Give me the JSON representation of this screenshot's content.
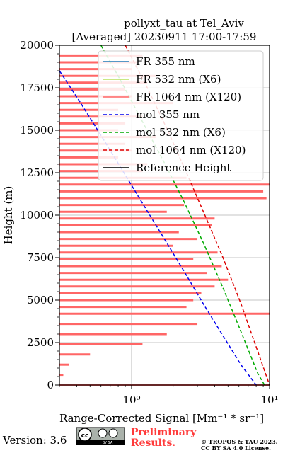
{
  "chart_data": {
    "type": "line",
    "title": "pollyxt_tau at Tel_Aviv",
    "subtitle": "[Averaged] 20230911 17:00-17:59",
    "xlabel": "Range-Corrected Signal [Mm⁻¹ * sr⁻¹]",
    "ylabel": "Height (m)",
    "xscale": "log",
    "xlim": [
      0.3,
      10
    ],
    "ylim": [
      0,
      20000
    ],
    "x_ticks": [
      {
        "value": 1,
        "label": "10⁰"
      },
      {
        "value": 10,
        "label": "10¹"
      }
    ],
    "y_ticks": [
      {
        "value": 0,
        "label": "0"
      },
      {
        "value": 2500,
        "label": "2500"
      },
      {
        "value": 5000,
        "label": "5000"
      },
      {
        "value": 7500,
        "label": "7500"
      },
      {
        "value": 10000,
        "label": "10000"
      },
      {
        "value": 12500,
        "label": "12500"
      },
      {
        "value": 15000,
        "label": "15000"
      },
      {
        "value": 17500,
        "label": "17500"
      },
      {
        "value": 20000,
        "label": "20000"
      }
    ],
    "grid": true,
    "legend_position": "top-right",
    "legend": [
      {
        "label": "FR 355 nm",
        "color": "#1f77b4",
        "style": "solid"
      },
      {
        "label": "FR 532 nm (X6)",
        "color": "#b8e05a",
        "style": "solid"
      },
      {
        "label": "FR 1064 nm (X120)",
        "color": "#ff6666",
        "style": "solid"
      },
      {
        "label": "mol 355 nm",
        "color": "#0000ee",
        "style": "dashed"
      },
      {
        "label": "mol 532 nm (X6)",
        "color": "#00aa00",
        "style": "dashed"
      },
      {
        "label": "mol 1064 nm (X120)",
        "color": "#dd0000",
        "style": "dashed"
      },
      {
        "label": "Reference Height",
        "color": "#000000",
        "style": "solid"
      }
    ],
    "series": [
      {
        "name": "mol 355 nm",
        "color": "#0000ee",
        "style": "dashed",
        "x": [
          0.3,
          0.42,
          0.6,
          0.85,
          1.2,
          1.7,
          2.4,
          3.3,
          4.6,
          6.2,
          8.0
        ],
        "y": [
          18500,
          16700,
          14700,
          12700,
          10700,
          8700,
          6700,
          4800,
          2900,
          1200,
          0
        ]
      },
      {
        "name": "mol 532 nm (X6)",
        "color": "#00aa00",
        "style": "dashed",
        "x": [
          0.6,
          0.85,
          1.2,
          1.7,
          2.4,
          3.3,
          4.5,
          6.1,
          8.2,
          9.2
        ],
        "y": [
          20000,
          17800,
          15500,
          13200,
          10800,
          8400,
          5900,
          3300,
          700,
          0
        ]
      },
      {
        "name": "mol 1064 nm (X120)",
        "color": "#dd0000",
        "style": "dashed",
        "x": [
          0.9,
          1.3,
          1.8,
          2.5,
          3.4,
          4.6,
          6.2,
          8.2,
          10.0
        ],
        "y": [
          20000,
          17500,
          15100,
          12500,
          10000,
          7500,
          4800,
          2000,
          0
        ]
      }
    ],
    "fr_1064_profile": {
      "name": "FR 1064 nm (X120)",
      "color": "#ff6666",
      "height": [
        0,
        600,
        1200,
        1800,
        2400,
        3000,
        3600,
        4200,
        4600,
        5000,
        5400,
        5800,
        6200,
        6600,
        7000,
        7400,
        7800,
        8200,
        8600,
        9000,
        9400,
        9800,
        10200,
        10600,
        11000,
        11400,
        11800,
        12200,
        12600,
        13000,
        13400,
        13800,
        14200,
        14600,
        15000,
        15400,
        15800,
        16200,
        16600,
        17000,
        17400,
        17800,
        18200,
        18600,
        19000,
        19400
      ],
      "value": [
        10.0,
        0.32,
        0.35,
        0.5,
        1.2,
        1.8,
        3.0,
        10.0,
        2.5,
        2.8,
        3.2,
        4.0,
        5.0,
        3.5,
        4.5,
        2.8,
        4.2,
        2.0,
        3.0,
        2.2,
        3.8,
        4.0,
        1.8,
        2.4,
        9.5,
        9.0,
        10.0,
        2.5,
        1.2,
        1.3,
        0.8,
        1.0,
        0.9,
        1.5,
        0.8,
        0.9,
        1.2,
        0.8,
        2.0,
        1.0,
        0.9,
        1.3,
        1.5,
        1.0,
        1.1,
        1.2
      ]
    }
  },
  "footer": {
    "version": "Version: 3.6",
    "cc_badge_text": "cc",
    "cc_by_sa_text": "BY   SA",
    "prelim_line1": "Preliminary",
    "prelim_line2": "Results.",
    "credit_line1": "© TROPOS & TAU 2023.",
    "credit_line2": "CC BY SA 4.0 License."
  }
}
